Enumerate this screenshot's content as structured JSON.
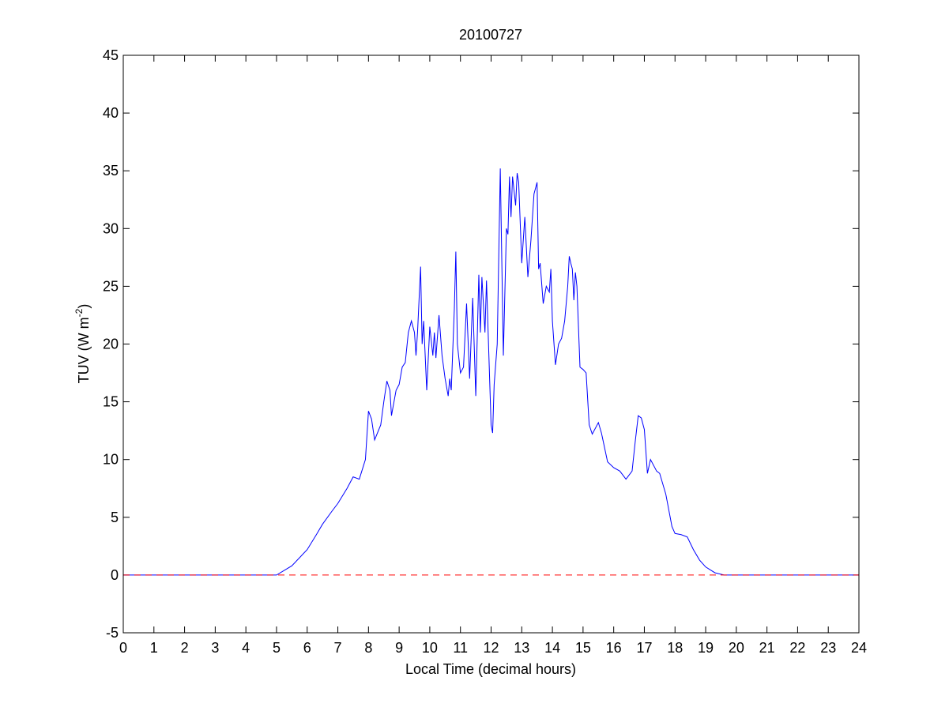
{
  "chart_data": {
    "type": "line",
    "title": "20100727",
    "xlabel": "Local Time (decimal hours)",
    "ylabel": [
      "TUV (W m",
      "-2",
      ")"
    ],
    "xlim": [
      0,
      24
    ],
    "ylim": [
      -5,
      45
    ],
    "xticks": [
      0,
      1,
      2,
      3,
      4,
      5,
      6,
      7,
      8,
      9,
      10,
      11,
      12,
      13,
      14,
      15,
      16,
      17,
      18,
      19,
      20,
      21,
      22,
      23,
      24
    ],
    "yticks": [
      -5,
      0,
      5,
      10,
      15,
      20,
      25,
      30,
      35,
      40,
      45
    ],
    "series": [
      {
        "color": "#0000ff",
        "linestyle": "solid",
        "x": [
          0,
          5.0,
          5.5,
          6.0,
          6.3,
          6.5,
          6.8,
          7.0,
          7.3,
          7.5,
          7.7,
          7.9,
          8.0,
          8.1,
          8.2,
          8.4,
          8.5,
          8.6,
          8.7,
          8.75,
          8.9,
          9.0,
          9.1,
          9.2,
          9.3,
          9.4,
          9.5,
          9.55,
          9.6,
          9.7,
          9.75,
          9.8,
          9.9,
          10.0,
          10.1,
          10.15,
          10.2,
          10.3,
          10.4,
          10.5,
          10.6,
          10.65,
          10.7,
          10.8,
          10.85,
          10.9,
          11.0,
          11.1,
          11.2,
          11.3,
          11.4,
          11.5,
          11.6,
          11.65,
          11.7,
          11.8,
          11.85,
          12.0,
          12.05,
          12.1,
          12.2,
          12.3,
          12.4,
          12.5,
          12.55,
          12.6,
          12.65,
          12.7,
          12.8,
          12.85,
          12.9,
          13.0,
          13.1,
          13.2,
          13.3,
          13.4,
          13.5,
          13.55,
          13.6,
          13.7,
          13.8,
          13.9,
          13.95,
          14.0,
          14.1,
          14.2,
          14.3,
          14.4,
          14.5,
          14.55,
          14.6,
          14.65,
          14.7,
          14.75,
          14.8,
          14.9,
          15.0,
          15.1,
          15.2,
          15.3,
          15.5,
          15.6,
          15.8,
          16.0,
          16.2,
          16.4,
          16.6,
          16.7,
          16.8,
          16.9,
          17.0,
          17.1,
          17.2,
          17.4,
          17.5,
          17.7,
          17.9,
          18.0,
          18.2,
          18.4,
          18.6,
          18.8,
          19.0,
          19.3,
          19.6,
          24
        ],
        "values": [
          0,
          0,
          0.8,
          2.2,
          3.5,
          4.4,
          5.5,
          6.2,
          7.5,
          8.5,
          8.3,
          10,
          14.2,
          13.5,
          11.7,
          13,
          15,
          16.8,
          16,
          13.8,
          16,
          16.5,
          18,
          18.4,
          21,
          22,
          21,
          19,
          21,
          26.7,
          20,
          22,
          16,
          21.5,
          19,
          21,
          18.8,
          22.5,
          19,
          17,
          15.5,
          17,
          16,
          23,
          28,
          20,
          17.5,
          18,
          23.5,
          17,
          24,
          15.5,
          26,
          21,
          25.8,
          21,
          25.5,
          13,
          12.3,
          16.5,
          20,
          35.2,
          19,
          30,
          29.5,
          34.5,
          31,
          34.5,
          32,
          34.8,
          34,
          27,
          31,
          25.8,
          29,
          33,
          34,
          26.5,
          27,
          23.5,
          25,
          24.5,
          26.5,
          22,
          18.2,
          20,
          20.5,
          22,
          25,
          27.6,
          27,
          26.5,
          23.8,
          26.2,
          25,
          18,
          17.8,
          17.5,
          13,
          12.2,
          13.2,
          12.3,
          9.8,
          9.3,
          9,
          8.3,
          9,
          11.5,
          13.8,
          13.6,
          12.6,
          8.8,
          10,
          9,
          8.8,
          7,
          4.2,
          3.6,
          3.5,
          3.3,
          2.2,
          1.3,
          0.7,
          0.2,
          0,
          0
        ]
      },
      {
        "color": "#ff0000",
        "linestyle": "dashed",
        "x": [
          0,
          24
        ],
        "values": [
          0,
          0
        ]
      }
    ]
  }
}
